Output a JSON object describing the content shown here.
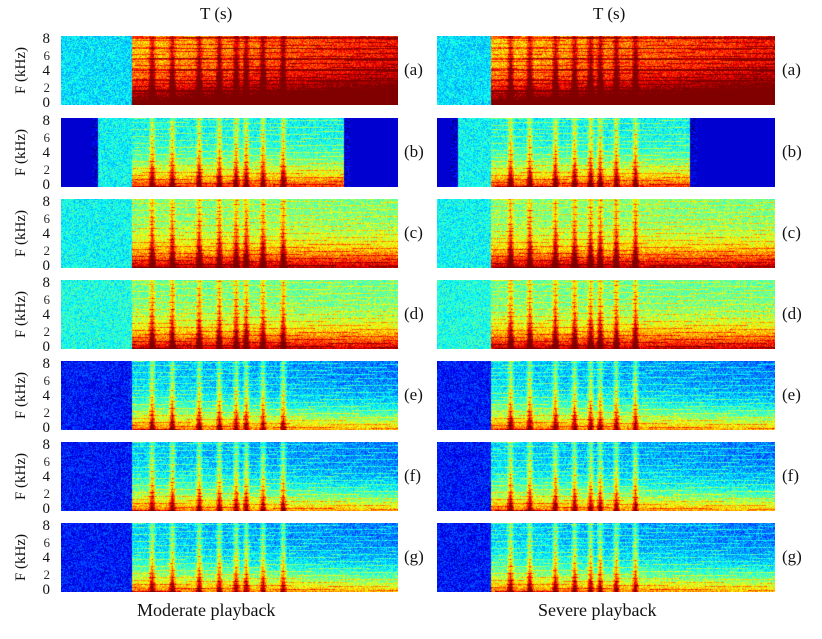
{
  "figure": {
    "columns": [
      {
        "title": "T (s)",
        "caption": "Moderate playback"
      },
      {
        "title": "T (s)",
        "caption": "Severe playback"
      }
    ],
    "y_axis_label": "F (kHz)",
    "y_ticks": [
      "8",
      "4",
      "0"
    ],
    "y_tick_minor": [
      "6",
      "2"
    ],
    "rows": [
      {
        "label": "(a)"
      },
      {
        "label": "(b)"
      },
      {
        "label": "(c)"
      },
      {
        "label": "(d)"
      },
      {
        "label": "(e)"
      },
      {
        "label": "(f)"
      },
      {
        "label": "(g)"
      }
    ]
  }
}
